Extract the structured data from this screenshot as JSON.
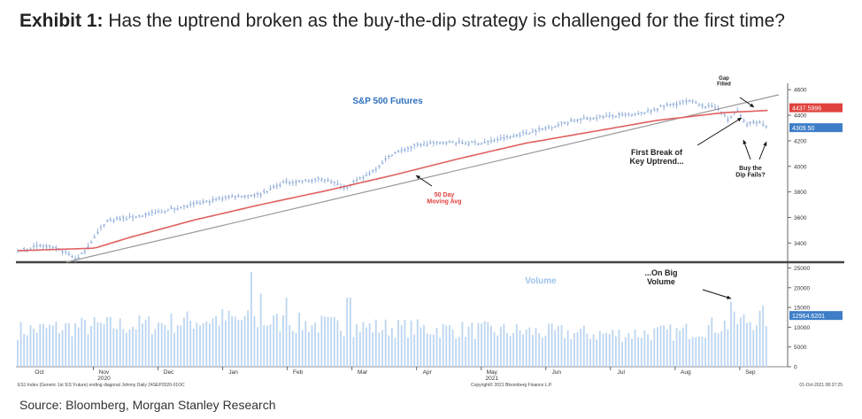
{
  "exhibit": {
    "label": "Exhibit 1:",
    "title": "Has the uptrend broken as the buy-the-dip strategy is challenged for the first time?"
  },
  "source": "Source: Bloomberg, Morgan Stanley Research",
  "footer": {
    "left": "ES1 Index (Generic 1st 'ES' Future) ending diagonal Johnny Daily 24SEP2020-01OC",
    "center": "Copyright© 2021 Bloomberg Finance L.P.",
    "right": "01-Oct-2021 08:37:25"
  },
  "colors": {
    "candle": "#8aa9d6",
    "ma": "#e06060",
    "trend": "#999999",
    "volume": "#bcd6f0",
    "label_blue": "#2e6fc0",
    "tag_red": "#e0413c",
    "tag_blue": "#3e7ec8"
  },
  "chart_data": [
    {
      "type": "line",
      "title": "S&P 500 Futures",
      "ylim": [
        3250,
        4650
      ],
      "yticks": [
        3400,
        3600,
        3800,
        4000,
        4200,
        4400,
        4600
      ],
      "months": [
        "Oct",
        "Nov",
        "Dec",
        "Jan",
        "Feb",
        "Mar",
        "Apr",
        "May",
        "Jun",
        "Jul",
        "Aug",
        "Sep"
      ],
      "month_sub": {
        "Nov": "2020",
        "May": "2021"
      },
      "price_anchors": [
        {
          "d": 0,
          "v": 3330
        },
        {
          "d": 10,
          "v": 3380
        },
        {
          "d": 20,
          "v": 3340
        },
        {
          "d": 27,
          "v": 3270
        },
        {
          "d": 33,
          "v": 3400
        },
        {
          "d": 40,
          "v": 3570
        },
        {
          "d": 52,
          "v": 3600
        },
        {
          "d": 66,
          "v": 3650
        },
        {
          "d": 80,
          "v": 3700
        },
        {
          "d": 95,
          "v": 3760
        },
        {
          "d": 110,
          "v": 3780
        },
        {
          "d": 120,
          "v": 3870
        },
        {
          "d": 140,
          "v": 3900
        },
        {
          "d": 148,
          "v": 3830
        },
        {
          "d": 160,
          "v": 3950
        },
        {
          "d": 170,
          "v": 4100
        },
        {
          "d": 182,
          "v": 4170
        },
        {
          "d": 195,
          "v": 4190
        },
        {
          "d": 210,
          "v": 4180
        },
        {
          "d": 220,
          "v": 4220
        },
        {
          "d": 230,
          "v": 4260
        },
        {
          "d": 240,
          "v": 4300
        },
        {
          "d": 250,
          "v": 4350
        },
        {
          "d": 265,
          "v": 4390
        },
        {
          "d": 280,
          "v": 4400
        },
        {
          "d": 295,
          "v": 4480
        },
        {
          "d": 305,
          "v": 4510
        },
        {
          "d": 312,
          "v": 4470
        },
        {
          "d": 318,
          "v": 4450
        },
        {
          "d": 322,
          "v": 4360
        },
        {
          "d": 326,
          "v": 4440
        },
        {
          "d": 330,
          "v": 4330
        },
        {
          "d": 335,
          "v": 4350
        },
        {
          "d": 340,
          "v": 4310
        }
      ],
      "ma_anchors": [
        {
          "d": 0,
          "v": 3340
        },
        {
          "d": 35,
          "v": 3360
        },
        {
          "d": 50,
          "v": 3440
        },
        {
          "d": 80,
          "v": 3580
        },
        {
          "d": 110,
          "v": 3700
        },
        {
          "d": 140,
          "v": 3810
        },
        {
          "d": 170,
          "v": 3930
        },
        {
          "d": 200,
          "v": 4060
        },
        {
          "d": 230,
          "v": 4180
        },
        {
          "d": 260,
          "v": 4270
        },
        {
          "d": 290,
          "v": 4360
        },
        {
          "d": 320,
          "v": 4420
        },
        {
          "d": 340,
          "v": 4437.6
        }
      ],
      "trend_anchors": [
        {
          "d": 22,
          "v": 3250
        },
        {
          "d": 345,
          "v": 4560
        }
      ],
      "last_tags": [
        "4437.5996",
        "4309.50"
      ],
      "annotations": {
        "ma_label": "50 Day\nMoving Avg",
        "gap": "Gap\nFilled",
        "break": "First Break of\nKey Uptrend...",
        "dip": "Buy the\nDip Fails?"
      }
    },
    {
      "type": "bar",
      "title": "Volume",
      "ylim": [
        0,
        26000
      ],
      "yticks": [
        0,
        5000,
        10000,
        15000,
        20000,
        25000
      ],
      "last_tag": "12964.6201",
      "annotation": "...On Big\nVolume",
      "volume_anchors": [
        {
          "d": 0,
          "v": 9500
        },
        {
          "d": 30,
          "v": 10500
        },
        {
          "d": 60,
          "v": 11000
        },
        {
          "d": 90,
          "v": 12500
        },
        {
          "d": 120,
          "v": 11500
        },
        {
          "d": 150,
          "v": 10500
        },
        {
          "d": 180,
          "v": 10000
        },
        {
          "d": 210,
          "v": 9500
        },
        {
          "d": 240,
          "v": 9000
        },
        {
          "d": 270,
          "v": 8500
        },
        {
          "d": 300,
          "v": 9000
        },
        {
          "d": 330,
          "v": 12000
        },
        {
          "d": 340,
          "v": 13000
        }
      ],
      "spikes": [
        {
          "d": 106,
          "v": 24000
        },
        {
          "d": 110,
          "v": 18500
        },
        {
          "d": 122,
          "v": 17500
        },
        {
          "d": 150,
          "v": 17500
        },
        {
          "d": 323,
          "v": 16500
        }
      ]
    }
  ]
}
